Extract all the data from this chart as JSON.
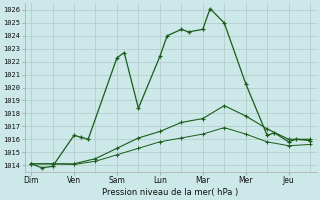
{
  "xlabel": "Pression niveau de la mer( hPa )",
  "ylim": [
    1013.5,
    1026.5
  ],
  "yticks": [
    1014,
    1015,
    1016,
    1017,
    1018,
    1019,
    1020,
    1021,
    1022,
    1023,
    1024,
    1025,
    1026
  ],
  "xtick_labels": [
    "Dim",
    "Ven",
    "Sam",
    "Lun",
    "Mar",
    "Mer",
    "Jeu"
  ],
  "xtick_positions": [
    0,
    1,
    2,
    3,
    4,
    5,
    6
  ],
  "xlim": [
    -0.15,
    6.65
  ],
  "bg_color": "#cce8e8",
  "grid_color": "#b0c8c8",
  "line_color": "#1a5c1a",
  "line1": {
    "x": [
      0.0,
      0.25,
      0.5,
      1.0,
      1.17,
      1.33,
      2.0,
      2.17,
      2.5,
      3.0,
      3.17,
      3.5,
      3.67,
      4.0,
      4.17,
      4.5,
      5.0,
      5.5,
      5.67,
      6.0,
      6.17,
      6.5
    ],
    "y": [
      1014.1,
      1013.8,
      1013.9,
      1016.3,
      1016.15,
      1016.0,
      1022.3,
      1022.7,
      1018.4,
      1022.4,
      1024.0,
      1024.5,
      1024.3,
      1024.5,
      1026.1,
      1025.0,
      1020.3,
      1016.3,
      1016.5,
      1015.8,
      1016.0,
      1015.9
    ]
  },
  "line2": {
    "x": [
      0.0,
      0.5,
      1.0,
      1.5,
      2.0,
      2.5,
      3.0,
      3.5,
      4.0,
      4.5,
      5.0,
      5.5,
      6.0,
      6.5
    ],
    "y": [
      1014.1,
      1014.1,
      1014.1,
      1014.5,
      1015.3,
      1016.1,
      1016.6,
      1017.3,
      1017.6,
      1018.6,
      1017.8,
      1016.8,
      1016.0,
      1016.0
    ]
  },
  "line3": {
    "x": [
      0.0,
      0.5,
      1.0,
      1.5,
      2.0,
      2.5,
      3.0,
      3.5,
      4.0,
      4.5,
      5.0,
      5.5,
      6.0,
      6.5
    ],
    "y": [
      1014.1,
      1014.1,
      1014.05,
      1014.3,
      1014.8,
      1015.3,
      1015.8,
      1016.1,
      1016.4,
      1016.9,
      1016.4,
      1015.8,
      1015.5,
      1015.6
    ]
  },
  "ytick_fontsize": 5.0,
  "xtick_fontsize": 5.5,
  "xlabel_fontsize": 6.0
}
